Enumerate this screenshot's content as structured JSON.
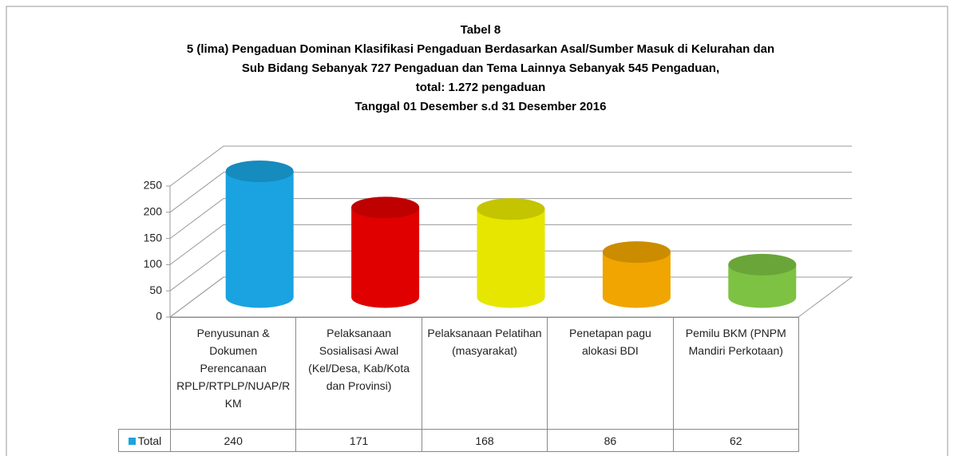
{
  "chart_data": {
    "type": "bar3d",
    "title": [
      "Tabel 8",
      "5 (lima) Pengaduan Dominan Klasifikasi Pengaduan Berdasarkan Asal/Sumber Masuk di Kelurahan dan",
      "Sub Bidang Sebanyak 727 Pengaduan dan Tema Lainnya Sebanyak 545 Pengaduan,",
      "total: 1.272 pengaduan",
      "Tanggal 01 Desember s.d 31 Desember 2016"
    ],
    "categories": [
      "Penyusunan & Dokumen Perencanaan RPLP/RTPLP/NUAP/RKM",
      "Pelaksanaan Sosialisasi Awal (Kel/Desa, Kab/Kota dan Provinsi)",
      "Pelaksanaan Pelatihan (masyarakat)",
      "Penetapan pagu alokasi BDI",
      "Pemilu BKM (PNPM Mandiri Perkotaan)"
    ],
    "series": [
      {
        "name": "Total",
        "color": "#1aa3e0",
        "colors": [
          "#1aa3e0",
          "#e00000",
          "#e6e600",
          "#f0a500",
          "#7dc243"
        ],
        "values": [
          240,
          171,
          168,
          86,
          62
        ]
      }
    ],
    "ylim": [
      0,
      250
    ],
    "yticks": [
      0,
      50,
      100,
      150,
      200,
      250
    ],
    "grid": true,
    "data_table": true
  }
}
